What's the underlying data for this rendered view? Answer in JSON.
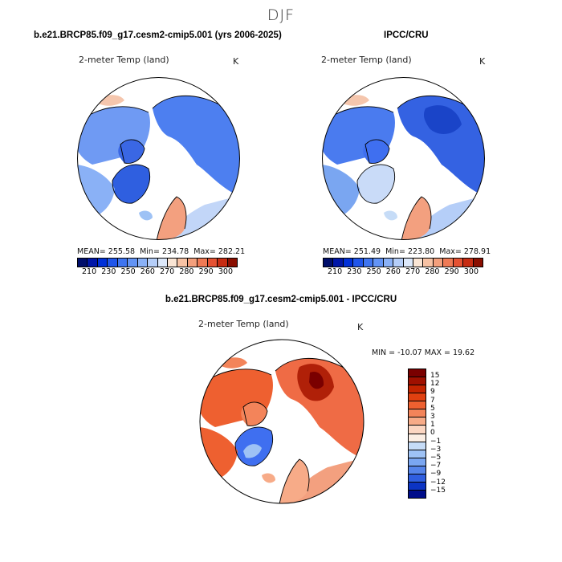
{
  "season": "DJF",
  "panels": [
    {
      "title": "b.e21.BRCP85.f09_g17.cesm2-cmip5.001 (yrs 2006-2025)",
      "variable": "2-meter Temp (land)",
      "units": "K",
      "mean_label": "MEAN=",
      "mean": "255.58",
      "min_label": "Min=",
      "min": "234.78",
      "max_label": "Max=",
      "max": "282.21"
    },
    {
      "title": "IPCC/CRU",
      "variable": "2-meter Temp (land)",
      "units": "K",
      "mean_label": "MEAN=",
      "mean": "251.49",
      "min_label": "Min=",
      "min": "223.80",
      "max_label": "Max=",
      "max": "278.91"
    }
  ],
  "abs_colorbar": {
    "labels": [
      "210",
      "230",
      "250",
      "260",
      "270",
      "280",
      "290",
      "300"
    ],
    "colors": [
      "#000e6b",
      "#0016a8",
      "#0030d8",
      "#1f55ea",
      "#3f75f0",
      "#6394f5",
      "#8ab1f6",
      "#b5cef8",
      "#dce8fa",
      "#fae5d4",
      "#f7c2a4",
      "#f39f7c",
      "#ef7a55",
      "#e55233",
      "#c72c12",
      "#8a0e00"
    ]
  },
  "diff_panel": {
    "title": "b.e21.BRCP85.f09_g17.cesm2-cmip5.001 - IPCC/CRU",
    "variable": "2-meter Temp (land)",
    "units": "K",
    "minmax_label": "MIN = -10.07 MAX =  19.62"
  },
  "diff_colorbar": {
    "labels": [
      "15",
      "12",
      "9",
      "7",
      "5",
      "3",
      "1",
      "0",
      "−1",
      "−3",
      "−5",
      "−7",
      "−9",
      "−12",
      "−15"
    ],
    "colors": [
      "#7a0000",
      "#a01000",
      "#c42400",
      "#e04010",
      "#ee6030",
      "#f3845a",
      "#f7ab88",
      "#fbd6c2",
      "#fbeee4",
      "#c6dcf7",
      "#9ec2f5",
      "#7aa6f1",
      "#5584ea",
      "#2f5ee0",
      "#0c34c4",
      "#000d8a"
    ]
  },
  "region_colors": {
    "land_cool": "#5a89ef",
    "land_mid": "#7aa4f4",
    "land_pale": "#c4d8f8",
    "land_deep": "#2f5fe0",
    "land_warm": "#f3a07f",
    "diff_warm": "#ef6b45",
    "diff_hot": "#c0290b",
    "diff_cool": "#3f6ff0"
  }
}
